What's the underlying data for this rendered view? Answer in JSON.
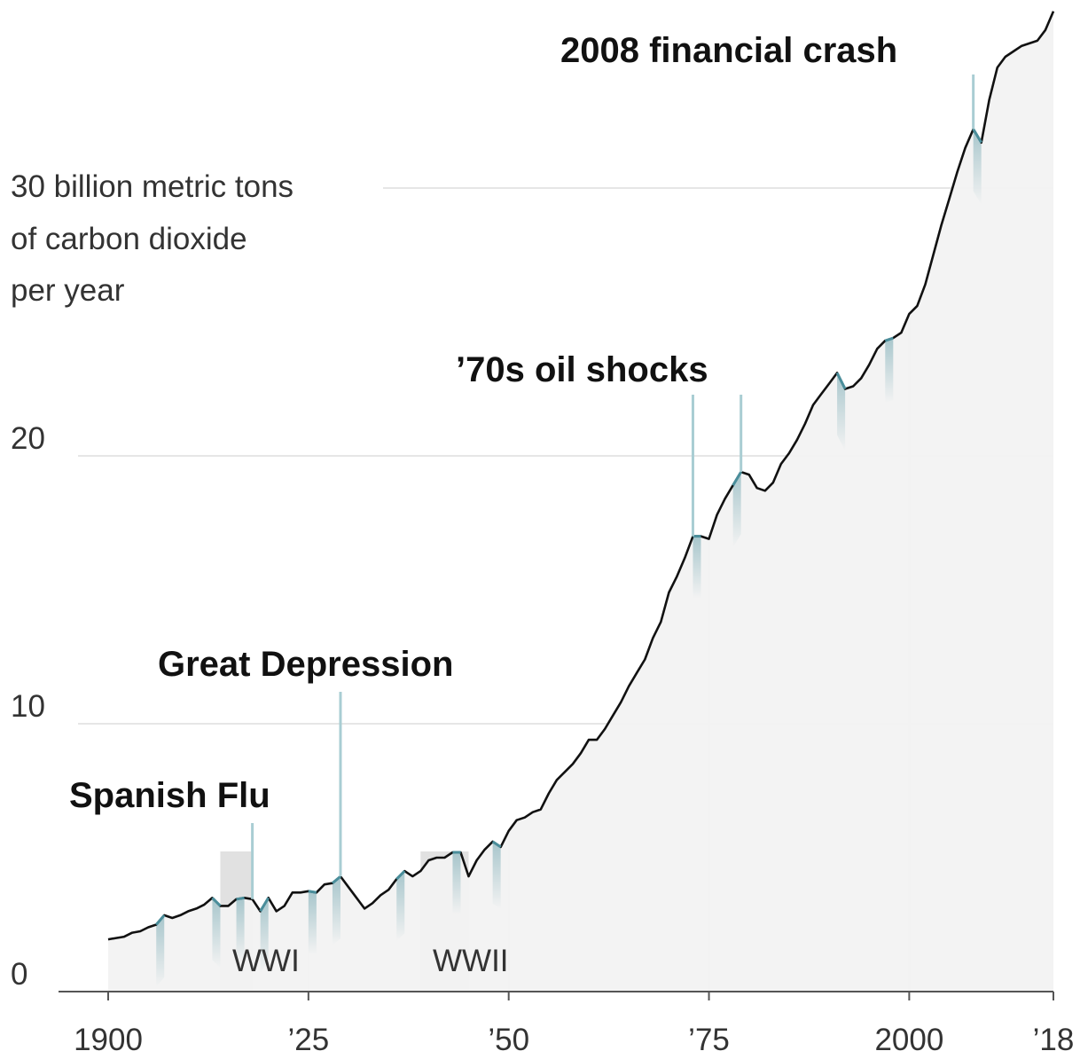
{
  "chart_data": {
    "type": "area",
    "title": "",
    "xlabel": "",
    "ylabel": "30 billion metric tons of carbon dioxide per year",
    "y_title_lines": [
      "30 billion metric tons",
      "of carbon dioxide",
      "per year"
    ],
    "xlim": [
      1900,
      2018
    ],
    "ylim": [
      0,
      36
    ],
    "grid": true,
    "x_ticks": [
      {
        "value": 1900,
        "label": "1900"
      },
      {
        "value": 1925,
        "label": "’25"
      },
      {
        "value": 1950,
        "label": "’50"
      },
      {
        "value": 1975,
        "label": "’75"
      },
      {
        "value": 2000,
        "label": "2000"
      },
      {
        "value": 2018,
        "label": "’18"
      }
    ],
    "y_ticks": [
      {
        "value": 0,
        "label": "0"
      },
      {
        "value": 10,
        "label": "10"
      },
      {
        "value": 20,
        "label": "20"
      },
      {
        "value": 30,
        "label": ""
      }
    ],
    "colors": {
      "line": "#111111",
      "area": "#f2f2f2",
      "dip": "#4a8e9b",
      "war_band": "#d9d9d9",
      "grid": "#e6e6e6"
    },
    "series": [
      {
        "x": [
          1900,
          1901,
          1902,
          1903,
          1904,
          1905,
          1906,
          1907,
          1908,
          1909,
          1910,
          1911,
          1912,
          1913,
          1914,
          1915,
          1916,
          1917,
          1918,
          1919,
          1920,
          1921,
          1922,
          1923,
          1924,
          1925,
          1926,
          1927,
          1928,
          1929,
          1930,
          1931,
          1932,
          1933,
          1934,
          1935,
          1936,
          1937,
          1938,
          1939,
          1940,
          1941,
          1942,
          1943,
          1944,
          1945,
          1946,
          1947,
          1948,
          1949,
          1950,
          1951,
          1952,
          1953,
          1954,
          1955,
          1956,
          1957,
          1958,
          1959,
          1960,
          1961,
          1962,
          1963,
          1964,
          1965,
          1966,
          1967,
          1968,
          1969,
          1970,
          1971,
          1972,
          1973,
          1974,
          1975,
          1976,
          1977,
          1978,
          1979,
          1980,
          1981,
          1982,
          1983,
          1984,
          1985,
          1986,
          1987,
          1988,
          1989,
          1990,
          1991,
          1992,
          1993,
          1994,
          1995,
          1996,
          1997,
          1998,
          1999,
          2000,
          2001,
          2002,
          2003,
          2004,
          2005,
          2006,
          2007,
          2008,
          2009,
          2010,
          2011,
          2012,
          2013,
          2014,
          2015,
          2016,
          2017,
          2018
        ],
        "values": [
          1.95,
          2.0,
          2.05,
          2.2,
          2.25,
          2.4,
          2.5,
          2.85,
          2.75,
          2.85,
          3.0,
          3.1,
          3.25,
          3.5,
          3.2,
          3.2,
          3.45,
          3.5,
          3.45,
          3.0,
          3.5,
          3.0,
          3.2,
          3.7,
          3.7,
          3.75,
          3.7,
          4.0,
          4.05,
          4.3,
          3.9,
          3.5,
          3.1,
          3.3,
          3.6,
          3.8,
          4.2,
          4.5,
          4.3,
          4.5,
          4.9,
          5.0,
          5.0,
          5.2,
          5.2,
          4.3,
          4.9,
          5.3,
          5.6,
          5.4,
          6.0,
          6.4,
          6.5,
          6.7,
          6.8,
          7.4,
          7.9,
          8.2,
          8.5,
          8.9,
          9.4,
          9.4,
          9.8,
          10.3,
          10.8,
          11.4,
          11.9,
          12.4,
          13.2,
          13.8,
          14.9,
          15.5,
          16.2,
          17.0,
          17.0,
          16.9,
          17.8,
          18.4,
          18.9,
          19.4,
          19.3,
          18.8,
          18.7,
          19.0,
          19.7,
          20.1,
          20.6,
          21.2,
          21.9,
          22.3,
          22.7,
          23.1,
          22.5,
          22.6,
          22.9,
          23.4,
          24.0,
          24.3,
          24.4,
          24.6,
          25.3,
          25.6,
          26.4,
          27.5,
          28.6,
          29.6,
          30.6,
          31.5,
          32.2,
          31.7,
          33.3,
          34.5,
          34.9,
          35.1,
          35.3,
          35.4,
          35.5,
          35.9,
          36.6
        ]
      }
    ],
    "dips": [
      1907,
      1914,
      1917,
      1920,
      1926,
      1929,
      1937,
      1944,
      1949,
      1974,
      1979,
      1992,
      1998,
      2009
    ],
    "wars": [
      {
        "label": "WWI",
        "start": 1914,
        "end": 1918
      },
      {
        "label": "WWII",
        "start": 1939,
        "end": 1945
      }
    ],
    "annotations": [
      {
        "label": "Spanish Flu",
        "year": 1918
      },
      {
        "label": "Great Depression",
        "year": 1929
      },
      {
        "label": "’70s oil shocks",
        "years": [
          1973,
          1979
        ]
      },
      {
        "label": "2008 financial crash",
        "year": 2008
      }
    ]
  }
}
